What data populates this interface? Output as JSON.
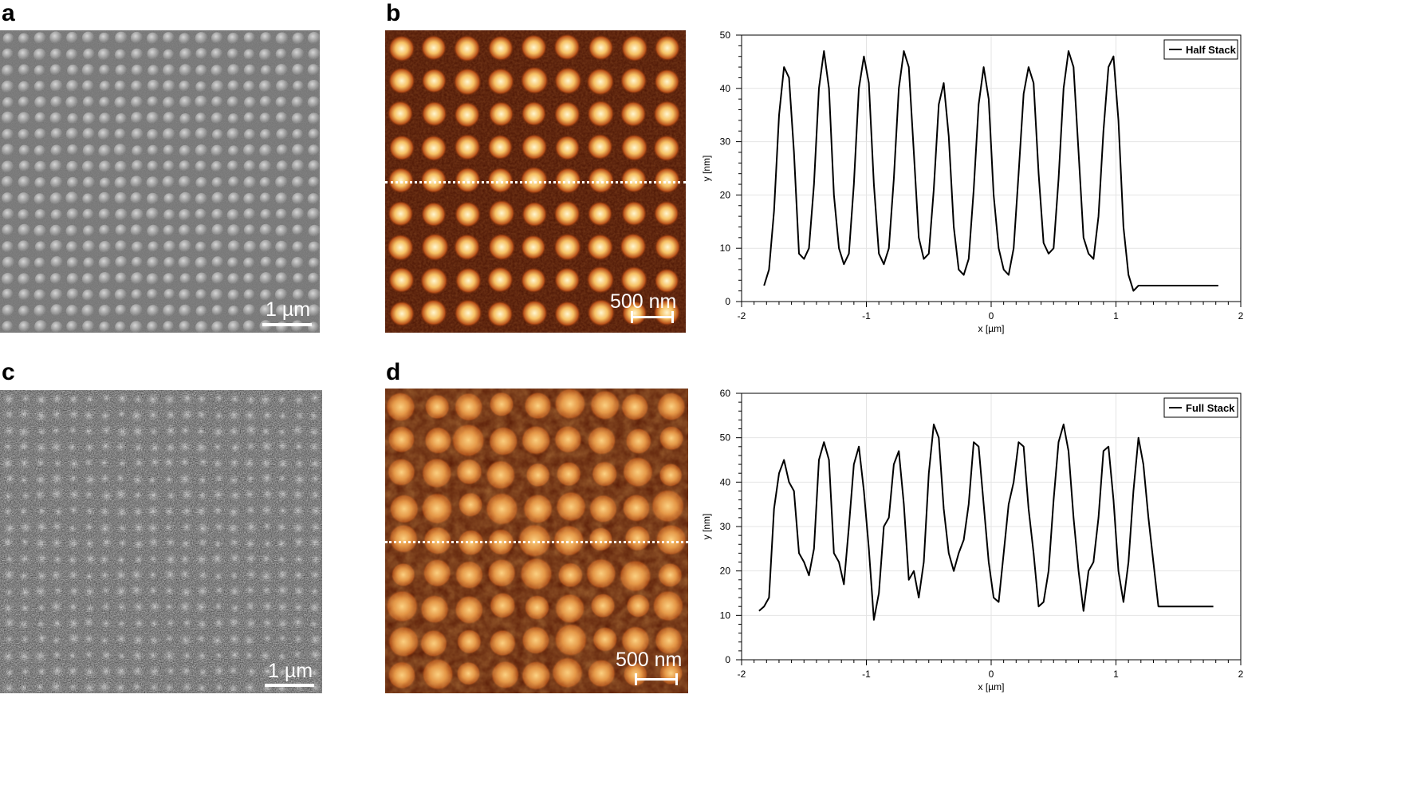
{
  "panels": {
    "a": {
      "label": "a",
      "scale_text": "1 µm"
    },
    "b": {
      "label": "b",
      "scale_text": "500 nm"
    },
    "c": {
      "label": "c",
      "scale_text": "1 µm"
    },
    "d": {
      "label": "d",
      "scale_text": "500 nm"
    }
  },
  "colors": {
    "afm_low": "#3a0f02",
    "afm_mid": "#c8601a",
    "afm_high": "#fff2c4",
    "sem_bg": "#6e6e6e",
    "line": "#000000"
  },
  "chart_data": [
    {
      "type": "line",
      "xlabel": "x [µm]",
      "ylabel": "y [nm]",
      "xlim": [
        -2,
        2
      ],
      "ylim": [
        0,
        50
      ],
      "xticks": [
        -2,
        -1,
        0,
        1,
        2
      ],
      "yticks": [
        0,
        10,
        20,
        30,
        40,
        50
      ],
      "grid": true,
      "legend_position": "top-right",
      "series": [
        {
          "name": "Half Stack",
          "x": [
            -1.82,
            -1.78,
            -1.74,
            -1.7,
            -1.66,
            -1.62,
            -1.58,
            -1.54,
            -1.5,
            -1.46,
            -1.42,
            -1.38,
            -1.34,
            -1.3,
            -1.26,
            -1.22,
            -1.18,
            -1.14,
            -1.1,
            -1.06,
            -1.02,
            -0.98,
            -0.94,
            -0.9,
            -0.86,
            -0.82,
            -0.78,
            -0.74,
            -0.7,
            -0.66,
            -0.62,
            -0.58,
            -0.54,
            -0.5,
            -0.46,
            -0.42,
            -0.38,
            -0.34,
            -0.3,
            -0.26,
            -0.22,
            -0.18,
            -0.14,
            -0.1,
            -0.06,
            -0.02,
            0.02,
            0.06,
            0.1,
            0.14,
            0.18,
            0.22,
            0.26,
            0.3,
            0.34,
            0.38,
            0.42,
            0.46,
            0.5,
            0.54,
            0.58,
            0.62,
            0.66,
            0.7,
            0.74,
            0.78,
            0.82,
            0.86,
            0.9,
            0.94,
            0.98,
            1.02,
            1.06,
            1.1,
            1.14,
            1.18,
            1.22,
            1.26,
            1.3,
            1.34,
            1.38,
            1.42,
            1.46,
            1.5,
            1.54,
            1.58,
            1.62,
            1.66,
            1.7,
            1.74,
            1.78,
            1.82
          ],
          "y": [
            3,
            6,
            17,
            35,
            44,
            42,
            28,
            9,
            8,
            10,
            22,
            40,
            47,
            40,
            20,
            10,
            7,
            9,
            22,
            40,
            46,
            41,
            22,
            9,
            7,
            10,
            23,
            40,
            47,
            44,
            28,
            12,
            8,
            9,
            21,
            37,
            41,
            31,
            14,
            6,
            5,
            8,
            21,
            37,
            44,
            38,
            20,
            10,
            6,
            5,
            10,
            24,
            39,
            44,
            41,
            24,
            11,
            9,
            10,
            23,
            40,
            47,
            44,
            28,
            12,
            9,
            8,
            16,
            32,
            44,
            46,
            34,
            14,
            5,
            2,
            3,
            3,
            3,
            3,
            3,
            3,
            3,
            3,
            3,
            3,
            3,
            3,
            3,
            3,
            3,
            3,
            3
          ]
        }
      ]
    },
    {
      "type": "line",
      "xlabel": "x [µm]",
      "ylabel": "y [nm]",
      "xlim": [
        -2,
        2
      ],
      "ylim": [
        0,
        60
      ],
      "xticks": [
        -2,
        -1,
        0,
        1,
        2
      ],
      "yticks": [
        0,
        10,
        20,
        30,
        40,
        50,
        60
      ],
      "grid": true,
      "legend_position": "top-right",
      "series": [
        {
          "name": "Full Stack",
          "x": [
            -1.86,
            -1.82,
            -1.78,
            -1.74,
            -1.7,
            -1.66,
            -1.62,
            -1.58,
            -1.54,
            -1.5,
            -1.46,
            -1.42,
            -1.38,
            -1.34,
            -1.3,
            -1.26,
            -1.22,
            -1.18,
            -1.14,
            -1.1,
            -1.06,
            -1.02,
            -0.98,
            -0.94,
            -0.9,
            -0.86,
            -0.82,
            -0.78,
            -0.74,
            -0.7,
            -0.66,
            -0.62,
            -0.58,
            -0.54,
            -0.5,
            -0.46,
            -0.42,
            -0.38,
            -0.34,
            -0.3,
            -0.26,
            -0.22,
            -0.18,
            -0.14,
            -0.1,
            -0.06,
            -0.02,
            0.02,
            0.06,
            0.1,
            0.14,
            0.18,
            0.22,
            0.26,
            0.3,
            0.34,
            0.38,
            0.42,
            0.46,
            0.5,
            0.54,
            0.58,
            0.62,
            0.66,
            0.7,
            0.74,
            0.78,
            0.82,
            0.86,
            0.9,
            0.94,
            0.98,
            1.02,
            1.06,
            1.1,
            1.14,
            1.18,
            1.22,
            1.26,
            1.3,
            1.34,
            1.38,
            1.42,
            1.46,
            1.5,
            1.54,
            1.58,
            1.62,
            1.66,
            1.7,
            1.74,
            1.78
          ],
          "y": [
            11,
            12,
            14,
            34,
            42,
            45,
            40,
            38,
            24,
            22,
            19,
            25,
            45,
            49,
            45,
            24,
            22,
            17,
            30,
            44,
            48,
            38,
            25,
            9,
            15,
            30,
            32,
            44,
            47,
            35,
            18,
            20,
            14,
            22,
            42,
            53,
            50,
            34,
            24,
            20,
            24,
            27,
            35,
            49,
            48,
            35,
            22,
            14,
            13,
            24,
            35,
            40,
            49,
            48,
            34,
            24,
            12,
            13,
            20,
            36,
            49,
            53,
            47,
            32,
            20,
            11,
            20,
            22,
            32,
            47,
            48,
            36,
            20,
            13,
            22,
            38,
            50,
            44,
            32,
            22,
            12,
            12,
            12,
            12,
            12,
            12,
            12,
            12,
            12,
            12,
            12,
            12
          ]
        }
      ]
    }
  ]
}
